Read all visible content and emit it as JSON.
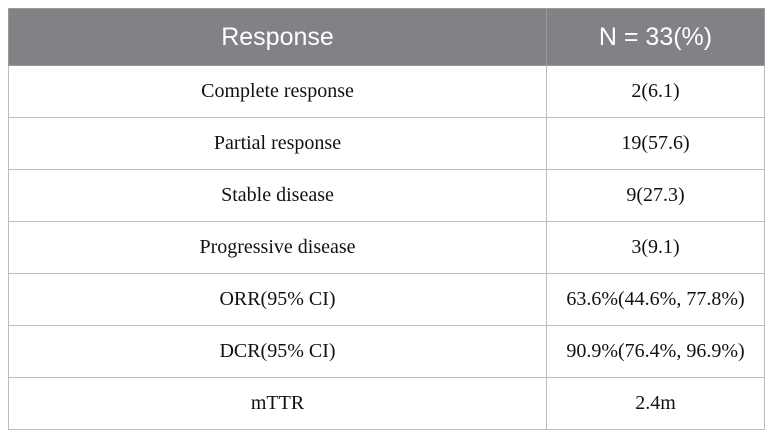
{
  "table": {
    "headers": [
      "Response",
      "N = 33(%)"
    ],
    "rows": [
      [
        "Complete response",
        "2(6.1)"
      ],
      [
        "Partial response",
        "19(57.6)"
      ],
      [
        "Stable disease",
        "9(27.3)"
      ],
      [
        "Progressive disease",
        "3(9.1)"
      ],
      [
        "ORR(95% CI)",
        "63.6%(44.6%, 77.8%)"
      ],
      [
        "DCR(95% CI)",
        "90.9%(76.4%, 96.9%)"
      ],
      [
        "mTTR",
        "2.4m"
      ]
    ]
  },
  "colors": {
    "header_bg": "#808285",
    "header_text": "#ffffff",
    "border": "#bdbdbd"
  }
}
